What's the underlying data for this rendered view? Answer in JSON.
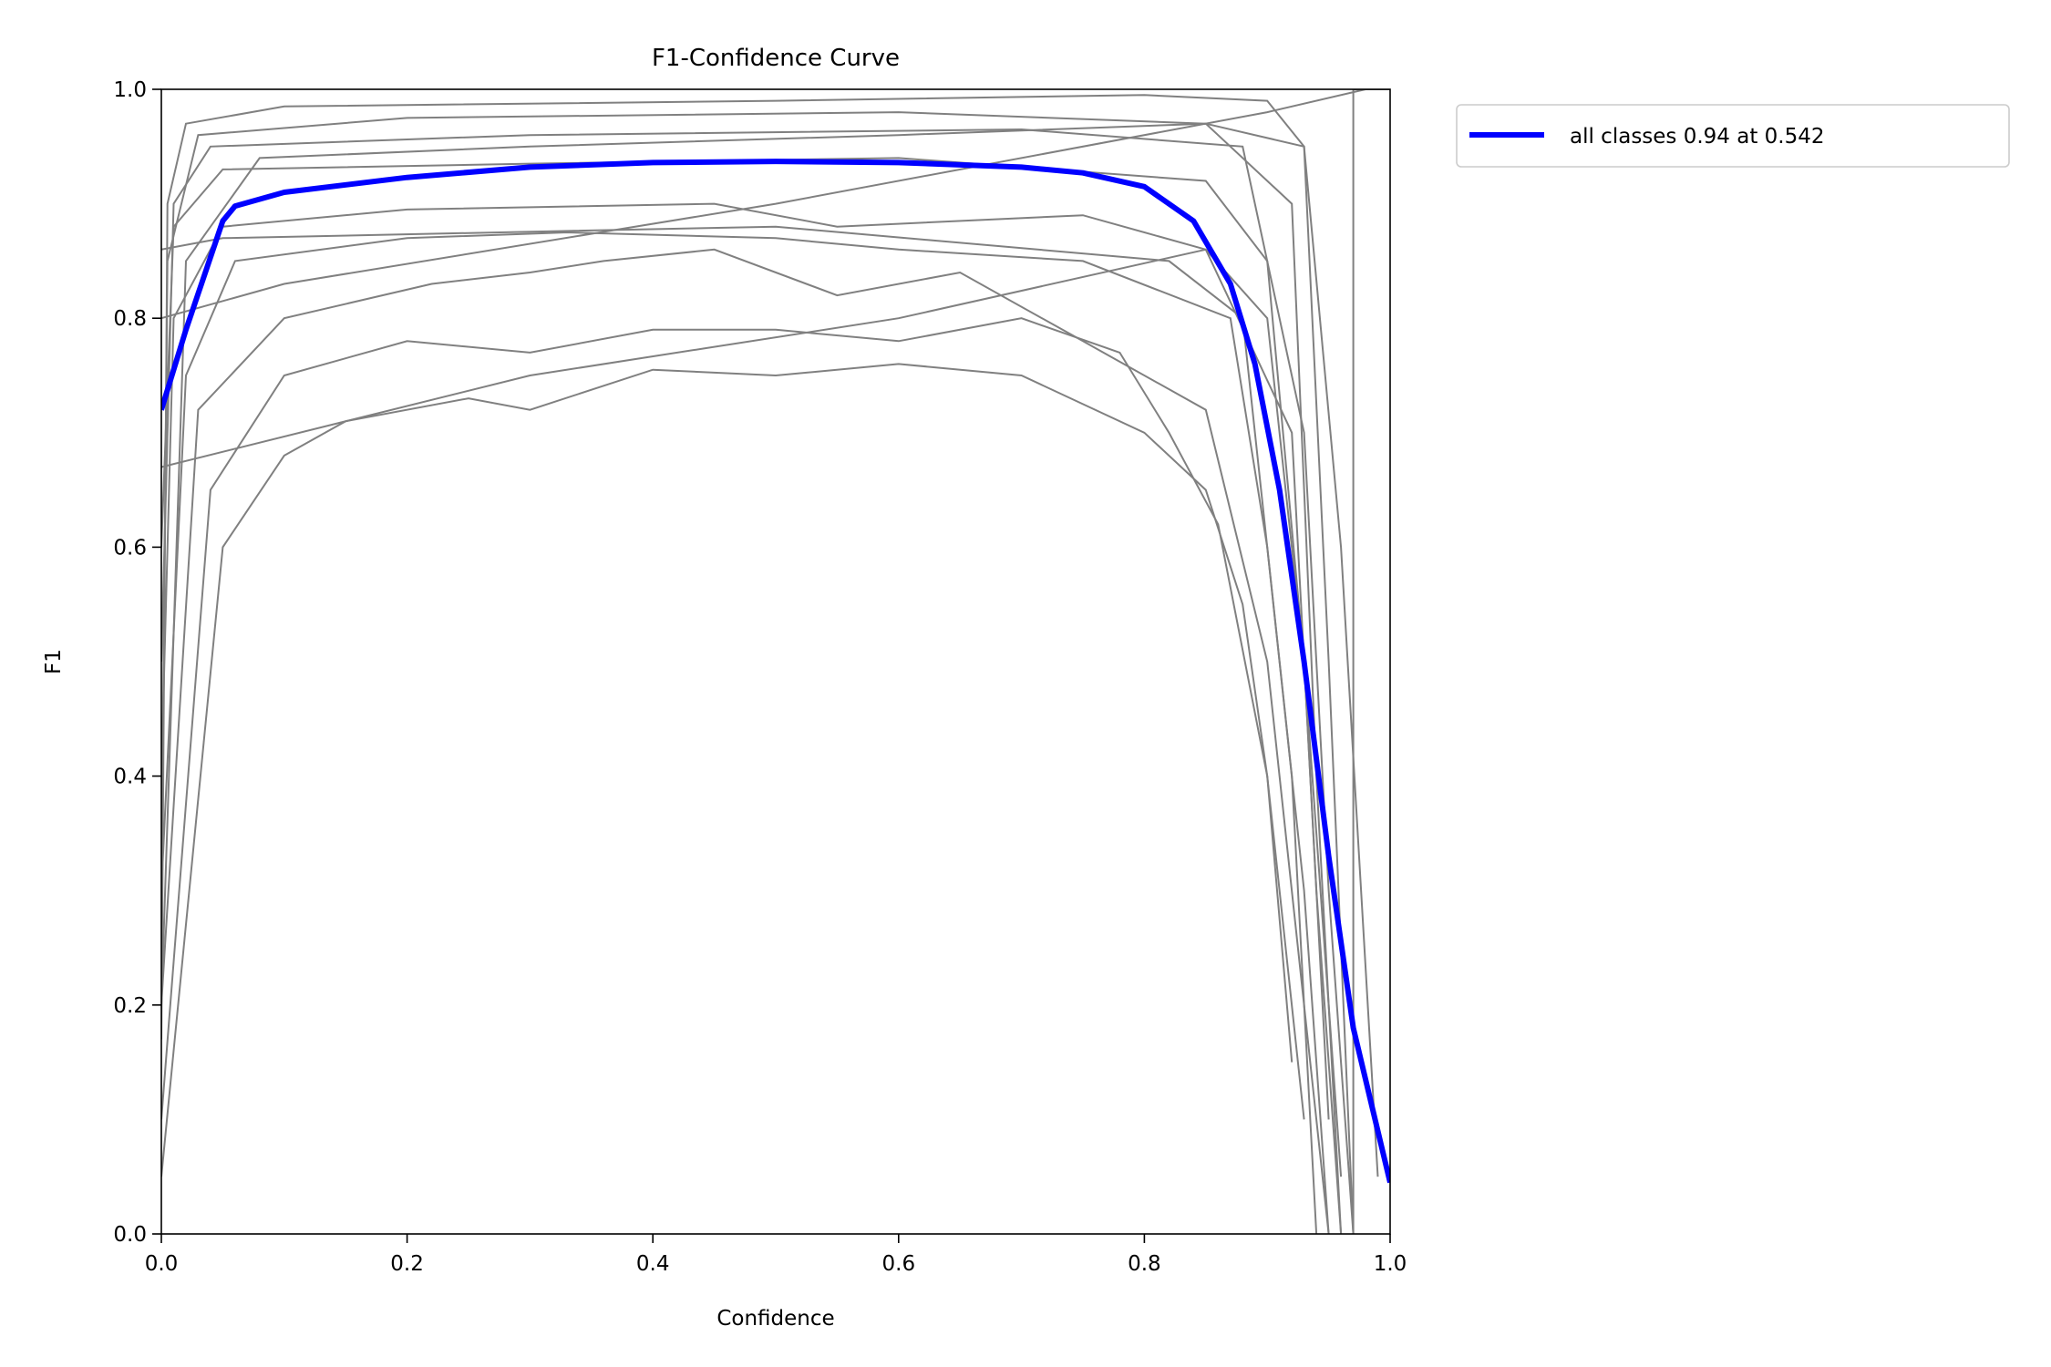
{
  "chart_data": {
    "type": "line",
    "title": "F1-Confidence Curve",
    "xlabel": "Confidence",
    "ylabel": "F1",
    "xlim": [
      0,
      1
    ],
    "ylim": [
      0,
      1
    ],
    "xticks": [
      "0.0",
      "0.2",
      "0.4",
      "0.6",
      "0.8",
      "1.0"
    ],
    "yticks": [
      "0.0",
      "0.2",
      "0.4",
      "0.6",
      "0.8",
      "1.0"
    ],
    "grid": false,
    "legend_position": "outside top-right",
    "series": [
      {
        "name": "all classes 0.94 at 0.542",
        "color": "#0000ff",
        "x": [
          0,
          0.02,
          0.05,
          0.06,
          0.1,
          0.2,
          0.3,
          0.4,
          0.5,
          0.6,
          0.7,
          0.75,
          0.8,
          0.84,
          0.87,
          0.89,
          0.91,
          0.93,
          0.95,
          0.97,
          0.99,
          1.0
        ],
        "y": [
          0.72,
          0.79,
          0.885,
          0.898,
          0.91,
          0.923,
          0.932,
          0.936,
          0.937,
          0.936,
          0.932,
          0.927,
          0.915,
          0.885,
          0.83,
          0.76,
          0.65,
          0.5,
          0.33,
          0.18,
          0.09,
          0.045
        ]
      }
    ],
    "class_curves_color": "#808080",
    "class_curves": [
      {
        "x": [
          0,
          0.005,
          0.02,
          0.1,
          0.5,
          0.8,
          0.9,
          0.93,
          0.95,
          0.97
        ],
        "y": [
          0.17,
          0.9,
          0.97,
          0.985,
          0.99,
          0.995,
          0.99,
          0.95,
          0.5,
          0.0
        ]
      },
      {
        "x": [
          0,
          0.005,
          0.03,
          0.2,
          0.6,
          0.85,
          0.92,
          0.94,
          0.96
        ],
        "y": [
          0.3,
          0.85,
          0.96,
          0.975,
          0.98,
          0.97,
          0.9,
          0.4,
          0.0
        ]
      },
      {
        "x": [
          0,
          0.01,
          0.04,
          0.3,
          0.7,
          0.88,
          0.93,
          0.95,
          0.97
        ],
        "y": [
          0.5,
          0.9,
          0.95,
          0.96,
          0.965,
          0.95,
          0.7,
          0.3,
          0.0
        ]
      },
      {
        "x": [
          0,
          0.01,
          0.05,
          0.3,
          0.6,
          0.85,
          0.9,
          0.93,
          0.96
        ],
        "y": [
          0.6,
          0.88,
          0.93,
          0.935,
          0.94,
          0.92,
          0.85,
          0.5,
          0.05
        ]
      },
      {
        "x": [
          0,
          0.01,
          0.05,
          0.2,
          0.45,
          0.55,
          0.75,
          0.85,
          0.92,
          0.94,
          0.96
        ],
        "y": [
          0.4,
          0.8,
          0.88,
          0.895,
          0.9,
          0.88,
          0.89,
          0.86,
          0.7,
          0.3,
          0.0
        ]
      },
      {
        "x": [
          0,
          0.02,
          0.06,
          0.2,
          0.33,
          0.5,
          0.6,
          0.75,
          0.87,
          0.9,
          0.93,
          0.95
        ],
        "y": [
          0.3,
          0.75,
          0.85,
          0.87,
          0.875,
          0.87,
          0.86,
          0.85,
          0.8,
          0.6,
          0.3,
          0.0
        ]
      },
      {
        "x": [
          0,
          0.03,
          0.1,
          0.22,
          0.3,
          0.36,
          0.45,
          0.55,
          0.65,
          0.75,
          0.85,
          0.9,
          0.93,
          0.95
        ],
        "y": [
          0.2,
          0.72,
          0.8,
          0.83,
          0.84,
          0.85,
          0.86,
          0.82,
          0.84,
          0.78,
          0.72,
          0.5,
          0.2,
          0.0
        ]
      },
      {
        "x": [
          0,
          0.04,
          0.1,
          0.2,
          0.3,
          0.4,
          0.5,
          0.6,
          0.7,
          0.78,
          0.82,
          0.86,
          0.9,
          0.93
        ],
        "y": [
          0.1,
          0.65,
          0.75,
          0.78,
          0.77,
          0.79,
          0.79,
          0.78,
          0.8,
          0.77,
          0.7,
          0.62,
          0.4,
          0.1
        ]
      },
      {
        "x": [
          0,
          0.05,
          0.1,
          0.15,
          0.25,
          0.3,
          0.4,
          0.5,
          0.6,
          0.7,
          0.8,
          0.85,
          0.88,
          0.9,
          0.92
        ],
        "y": [
          0.05,
          0.6,
          0.68,
          0.71,
          0.73,
          0.72,
          0.755,
          0.75,
          0.76,
          0.75,
          0.7,
          0.65,
          0.55,
          0.4,
          0.15
        ]
      },
      {
        "x": [
          0,
          0.3,
          0.6,
          0.85,
          0.9,
          0.93,
          0.95
        ],
        "y": [
          0.67,
          0.75,
          0.8,
          0.86,
          0.8,
          0.5,
          0.1
        ]
      },
      {
        "x": [
          0,
          0.05,
          0.5,
          0.82,
          0.88,
          0.92,
          0.94
        ],
        "y": [
          0.86,
          0.87,
          0.88,
          0.85,
          0.8,
          0.4,
          0.0
        ]
      },
      {
        "x": [
          0,
          0.1,
          0.5,
          0.9,
          0.98
        ],
        "y": [
          0.8,
          0.83,
          0.9,
          0.98,
          1.0
        ]
      },
      {
        "x": [
          0.97,
          0.97,
          1.0
        ],
        "y": [
          0.0,
          1.0,
          1.0
        ]
      },
      {
        "x": [
          0,
          0.02,
          0.08,
          0.3,
          0.6,
          0.85,
          0.93,
          0.96,
          0.99
        ],
        "y": [
          0.2,
          0.85,
          0.94,
          0.95,
          0.96,
          0.97,
          0.95,
          0.6,
          0.05
        ]
      }
    ]
  }
}
